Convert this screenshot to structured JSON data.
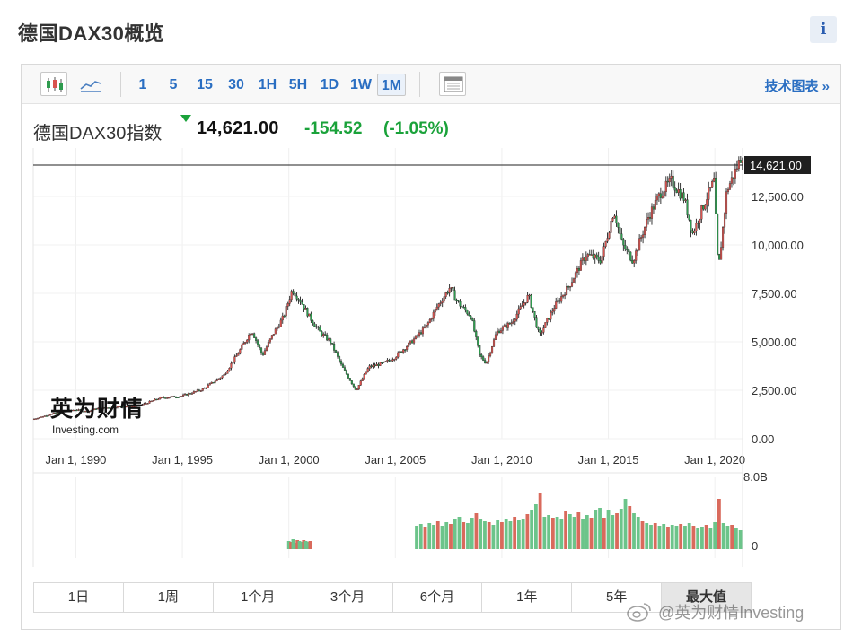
{
  "header": {
    "title": "德国DAX30概览",
    "info_label": "i"
  },
  "toolbar": {
    "timeframes": [
      "1",
      "5",
      "15",
      "30",
      "1H",
      "5H",
      "1D",
      "1W",
      "1M"
    ],
    "active_timeframe": "1M",
    "tech_chart_link": "技术图表 »",
    "icons": [
      "candlestick-icon",
      "line-chart-icon",
      "calendar-icon"
    ]
  },
  "quote": {
    "name": "德国DAX30指数",
    "last": "14,621.00",
    "change": "-154.52",
    "change_pct": "(-1.05%)",
    "direction": "down",
    "change_color": "#1aa23a"
  },
  "watermark": {
    "main": "英为财情",
    "sub": "Investing.com"
  },
  "range_buttons": [
    "1日",
    "1周",
    "1个月",
    "3个月",
    "6个月",
    "1年",
    "5年",
    "最大值"
  ],
  "active_range": "最大值",
  "social_watermark": "@英为财情Investing",
  "colors": {
    "up": "#d9534f",
    "down": "#2e9b4e",
    "volume_up": "#d96a5c",
    "volume_down": "#6cc48a",
    "link": "#2a6ec2"
  },
  "chart_data": {
    "type": "candlestick",
    "title": "德国DAX30指数",
    "xlabel": "",
    "ylabel": "",
    "x_ticks": [
      "Jan 1, 1990",
      "Jan 1, 1995",
      "Jan 1, 2000",
      "Jan 1, 2005",
      "Jan 1, 2010",
      "Jan 1, 2015",
      "Jan 1, 2020"
    ],
    "y_ticks": [
      "0.00",
      "2,500.00",
      "5,000.00",
      "7,500.00",
      "10,000.00",
      "12,500.00"
    ],
    "ylim": [
      0,
      15000
    ],
    "xlim": [
      1988.0,
      2021.3
    ],
    "last_price_label": "14,621.00",
    "last_price": 14621,
    "volume_y_ticks": [
      "8.0B",
      "0"
    ],
    "volume_ylim": [
      0,
      8
    ],
    "series": [
      {
        "name": "DAX",
        "points": [
          [
            1988.0,
            1000
          ],
          [
            1989.0,
            1300
          ],
          [
            1990.0,
            1500
          ],
          [
            1990.6,
            1400
          ],
          [
            1991.0,
            1550
          ],
          [
            1992.0,
            1650
          ],
          [
            1993.0,
            1700
          ],
          [
            1994.0,
            2100
          ],
          [
            1995.0,
            2200
          ],
          [
            1996.0,
            2550
          ],
          [
            1997.0,
            3300
          ],
          [
            1997.6,
            4300
          ],
          [
            1998.3,
            5600
          ],
          [
            1998.8,
            4300
          ],
          [
            1999.3,
            5400
          ],
          [
            1999.8,
            6300
          ],
          [
            2000.2,
            7700
          ],
          [
            2000.6,
            7100
          ],
          [
            2001.0,
            6300
          ],
          [
            2001.5,
            5500
          ],
          [
            2002.0,
            5000
          ],
          [
            2002.5,
            3800
          ],
          [
            2003.2,
            2500
          ],
          [
            2003.8,
            3700
          ],
          [
            2004.5,
            3900
          ],
          [
            2005.0,
            4200
          ],
          [
            2005.8,
            5000
          ],
          [
            2006.5,
            5800
          ],
          [
            2007.0,
            6800
          ],
          [
            2007.6,
            7800
          ],
          [
            2008.0,
            7000
          ],
          [
            2008.6,
            6300
          ],
          [
            2009.0,
            4300
          ],
          [
            2009.3,
            3900
          ],
          [
            2009.8,
            5500
          ],
          [
            2010.5,
            6000
          ],
          [
            2011.3,
            7400
          ],
          [
            2011.8,
            5300
          ],
          [
            2012.5,
            6800
          ],
          [
            2013.2,
            7900
          ],
          [
            2014.0,
            9500
          ],
          [
            2014.7,
            9200
          ],
          [
            2015.3,
            11800
          ],
          [
            2015.7,
            10000
          ],
          [
            2016.2,
            9200
          ],
          [
            2016.9,
            11400
          ],
          [
            2017.5,
            12700
          ],
          [
            2018.0,
            13300
          ],
          [
            2018.6,
            12400
          ],
          [
            2019.0,
            10600
          ],
          [
            2019.6,
            12300
          ],
          [
            2020.0,
            13300
          ],
          [
            2020.2,
            8600
          ],
          [
            2020.6,
            12800
          ],
          [
            2021.0,
            13800
          ],
          [
            2021.3,
            14621
          ]
        ]
      }
    ],
    "volume": [
      [
        2000.0,
        0.9
      ],
      [
        2000.1,
        0.8
      ],
      [
        2000.2,
        1.1
      ],
      [
        2000.3,
        0.7
      ],
      [
        2000.4,
        1.0
      ],
      [
        2000.5,
        0.9
      ],
      [
        2000.6,
        0.8
      ],
      [
        2000.7,
        1.0
      ],
      [
        2000.8,
        0.9
      ],
      [
        2000.9,
        0.8
      ],
      [
        2001.0,
        0.9
      ],
      [
        2006.0,
        2.6
      ],
      [
        2006.2,
        2.8
      ],
      [
        2006.4,
        2.5
      ],
      [
        2006.6,
        2.9
      ],
      [
        2006.8,
        2.7
      ],
      [
        2007.0,
        3.1
      ],
      [
        2007.2,
        2.6
      ],
      [
        2007.4,
        3.0
      ],
      [
        2007.6,
        2.8
      ],
      [
        2007.8,
        3.3
      ],
      [
        2008.0,
        3.6
      ],
      [
        2008.2,
        3.0
      ],
      [
        2008.4,
        2.9
      ],
      [
        2008.6,
        3.5
      ],
      [
        2008.8,
        4.0
      ],
      [
        2009.0,
        3.4
      ],
      [
        2009.2,
        3.1
      ],
      [
        2009.4,
        3.0
      ],
      [
        2009.6,
        2.7
      ],
      [
        2009.8,
        3.2
      ],
      [
        2010.0,
        3.0
      ],
      [
        2010.2,
        3.4
      ],
      [
        2010.4,
        3.1
      ],
      [
        2010.6,
        3.6
      ],
      [
        2010.8,
        3.2
      ],
      [
        2011.0,
        3.4
      ],
      [
        2011.2,
        3.9
      ],
      [
        2011.4,
        4.3
      ],
      [
        2011.6,
        5.0
      ],
      [
        2011.8,
        6.2
      ],
      [
        2012.0,
        3.6
      ],
      [
        2012.2,
        3.8
      ],
      [
        2012.4,
        3.5
      ],
      [
        2012.6,
        3.6
      ],
      [
        2012.8,
        3.3
      ],
      [
        2013.0,
        4.2
      ],
      [
        2013.2,
        3.9
      ],
      [
        2013.4,
        3.6
      ],
      [
        2013.6,
        4.1
      ],
      [
        2013.8,
        3.4
      ],
      [
        2014.0,
        3.8
      ],
      [
        2014.2,
        3.5
      ],
      [
        2014.4,
        4.4
      ],
      [
        2014.6,
        4.6
      ],
      [
        2014.8,
        3.5
      ],
      [
        2015.0,
        4.3
      ],
      [
        2015.2,
        3.8
      ],
      [
        2015.4,
        4.0
      ],
      [
        2015.6,
        4.5
      ],
      [
        2015.8,
        5.6
      ],
      [
        2016.0,
        4.8
      ],
      [
        2016.2,
        4.0
      ],
      [
        2016.4,
        3.6
      ],
      [
        2016.6,
        3.1
      ],
      [
        2016.8,
        2.9
      ],
      [
        2017.0,
        2.7
      ],
      [
        2017.2,
        2.9
      ],
      [
        2017.4,
        2.6
      ],
      [
        2017.6,
        2.8
      ],
      [
        2017.8,
        2.5
      ],
      [
        2018.0,
        2.7
      ],
      [
        2018.2,
        2.6
      ],
      [
        2018.4,
        2.8
      ],
      [
        2018.6,
        2.6
      ],
      [
        2018.8,
        2.9
      ],
      [
        2019.0,
        2.6
      ],
      [
        2019.2,
        2.4
      ],
      [
        2019.4,
        2.5
      ],
      [
        2019.6,
        2.7
      ],
      [
        2019.8,
        2.3
      ],
      [
        2020.0,
        3.0
      ],
      [
        2020.2,
        5.6
      ],
      [
        2020.4,
        2.9
      ],
      [
        2020.6,
        2.6
      ],
      [
        2020.8,
        2.7
      ],
      [
        2021.0,
        2.4
      ],
      [
        2021.2,
        2.1
      ]
    ]
  }
}
